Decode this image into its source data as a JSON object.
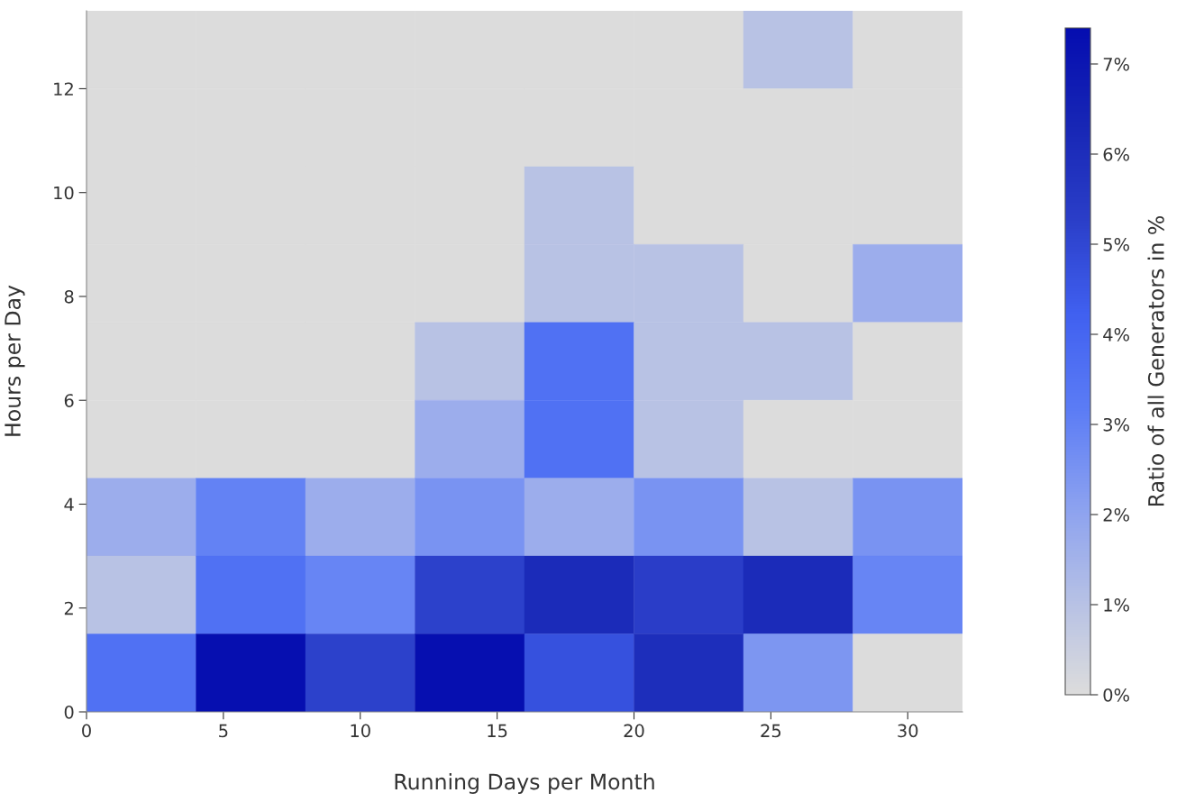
{
  "chart_data": {
    "type": "heatmap",
    "xlabel": "Running Days per Month",
    "ylabel": "Hours per Day",
    "clabel": "Ratio of all Generators in %",
    "cells": [
      [
        0,
        0,
        0,
        0,
        0,
        0,
        1.0,
        0
      ],
      [
        0,
        0,
        0,
        0,
        0,
        0,
        0,
        0
      ],
      [
        0,
        0,
        0,
        0,
        1.0,
        0,
        0,
        0
      ],
      [
        0,
        0,
        0,
        0,
        1.0,
        1.0,
        0,
        1.7
      ],
      [
        0,
        0,
        0,
        1.0,
        3.6,
        1.0,
        1.0,
        0
      ],
      [
        0,
        0,
        0,
        1.7,
        3.6,
        1.0,
        0,
        0
      ],
      [
        1.7,
        3.0,
        1.7,
        2.5,
        1.7,
        2.5,
        1.0,
        2.5
      ],
      [
        1.0,
        3.6,
        2.9,
        5.2,
        6.1,
        5.3,
        6.1,
        2.9
      ],
      [
        3.6,
        7.3,
        5.2,
        7.3,
        4.7,
        6.0,
        2.4,
        0
      ]
    ],
    "xlim": [
      0,
      32
    ],
    "xticks": [
      0,
      5,
      10,
      15,
      20,
      25,
      30
    ],
    "ylim": [
      0,
      13.5
    ],
    "yticks": [
      0,
      2,
      4,
      6,
      8,
      10,
      12
    ],
    "clim": [
      0,
      7.4
    ],
    "cticks": [
      {
        "value": 0,
        "label": "0%"
      },
      {
        "value": 1,
        "label": "1%"
      },
      {
        "value": 2,
        "label": "2%"
      },
      {
        "value": 3,
        "label": "3%"
      },
      {
        "value": 4,
        "label": "4%"
      },
      {
        "value": 5,
        "label": "5%"
      },
      {
        "value": 6,
        "label": "6%"
      },
      {
        "value": 7,
        "label": "7%"
      }
    ],
    "grid": false
  }
}
